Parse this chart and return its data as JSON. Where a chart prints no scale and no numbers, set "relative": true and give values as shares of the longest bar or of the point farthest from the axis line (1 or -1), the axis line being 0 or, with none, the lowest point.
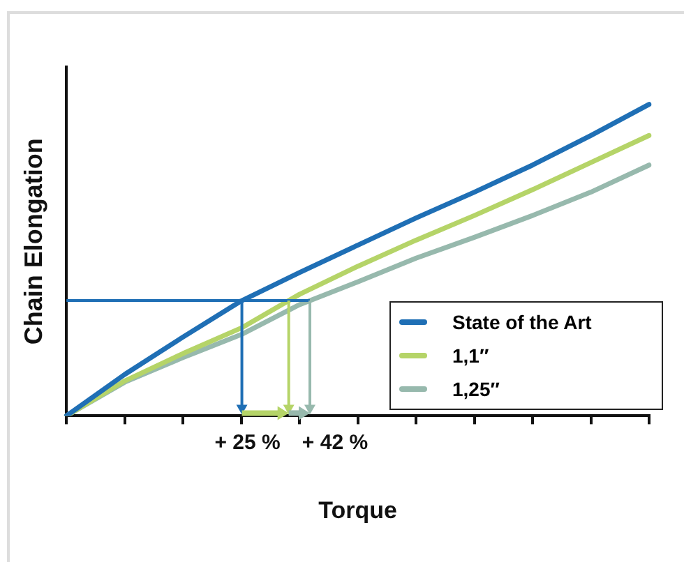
{
  "chart_data": {
    "type": "line",
    "relative": true,
    "xlabel": "Torque",
    "ylabel": "Chain Elongation",
    "categories": [
      null,
      null,
      null,
      null,
      null,
      null,
      null,
      null,
      null,
      null,
      null
    ],
    "series": [
      {
        "name": "State of the Art",
        "color": "#1f6fb5",
        "values": [
          0,
          0.133,
          0.253,
          0.369,
          0.46,
          0.548,
          0.635,
          0.718,
          0.805,
          0.9,
          1
        ]
      },
      {
        "name": "1,1″",
        "color": "#b5d468",
        "values": [
          0,
          0.112,
          0.2,
          0.282,
          0.39,
          0.48,
          0.564,
          0.643,
          0.726,
          0.813,
          0.9
        ]
      },
      {
        "name": "1,25″",
        "color": "#97b9ad",
        "values": [
          0,
          0.108,
          0.187,
          0.261,
          0.357,
          0.43,
          0.506,
          0.573,
          0.643,
          0.718,
          0.805
        ]
      }
    ],
    "ref_lines": [
      {
        "axis": "y",
        "value": 0.37,
        "color": "#1f6fb5"
      }
    ],
    "annotations": [
      "+ 25 %",
      "+ 42 %"
    ],
    "legend": "right",
    "grid": false,
    "marker": "none",
    "line_style": "solid"
  }
}
